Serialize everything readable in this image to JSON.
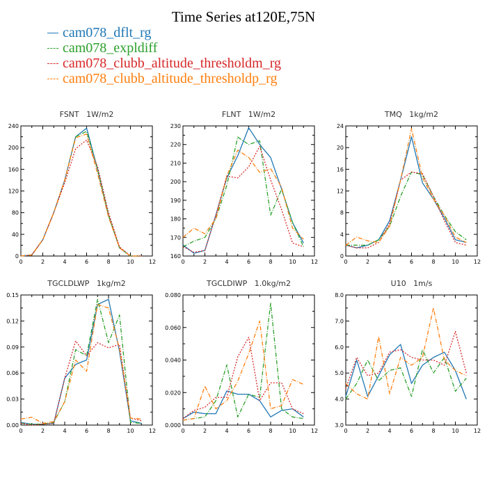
{
  "title": "Time Series at120E,75N",
  "legend": [
    {
      "label": "cam078_dflt_rg",
      "color": "#1f77b4",
      "dash": "solid"
    },
    {
      "label": "cam078_expldiff",
      "color": "#2ca02c",
      "dash": "dashdot"
    },
    {
      "label": "cam078_clubb_altitude_thresholdm_rg",
      "color": "#d62728",
      "dash": "dot"
    },
    {
      "label": "cam078_clubb_altitude_thresholdp_rg",
      "color": "#ff7f0e",
      "dash": "dashdot"
    }
  ],
  "chart_data": [
    {
      "type": "line",
      "title": "FSNT   1W/m2",
      "x": [
        0,
        1,
        2,
        3,
        4,
        5,
        6,
        7,
        8,
        9,
        10,
        11
      ],
      "xlim": [
        0,
        12
      ],
      "xticks": [
        "0",
        "2",
        "4",
        "6",
        "8",
        "10",
        "12"
      ],
      "ylim": [
        0,
        240
      ],
      "yticks": [
        "0",
        "40",
        "80",
        "120",
        "160",
        "200",
        "240"
      ],
      "series": [
        {
          "name": "cam078_dflt_rg",
          "values": [
            0,
            2,
            30,
            80,
            140,
            220,
            236,
            160,
            75,
            15,
            0,
            0
          ]
        },
        {
          "name": "cam078_expldiff",
          "values": [
            0,
            2,
            30,
            80,
            140,
            220,
            230,
            160,
            75,
            15,
            0,
            0
          ]
        },
        {
          "name": "cam078_clubb_altitude_thresholdm_rg",
          "values": [
            0,
            2,
            30,
            80,
            135,
            198,
            214,
            165,
            80,
            17,
            0,
            0
          ]
        },
        {
          "name": "cam078_clubb_altitude_thresholdp_rg",
          "values": [
            0,
            2,
            30,
            80,
            140,
            218,
            225,
            152,
            72,
            15,
            0,
            0
          ]
        }
      ]
    },
    {
      "type": "line",
      "title": "FLNT   1W/m2",
      "x": [
        0,
        1,
        2,
        3,
        4,
        5,
        6,
        7,
        8,
        9,
        10,
        11
      ],
      "xlim": [
        0,
        12
      ],
      "xticks": [
        "0",
        "2",
        "4",
        "6",
        "8",
        "10",
        "12"
      ],
      "ylim": [
        160,
        230
      ],
      "yticks": [
        "160",
        "170",
        "180",
        "190",
        "200",
        "210",
        "220",
        "230"
      ],
      "series": [
        {
          "name": "cam078_dflt_rg",
          "values": [
            166,
            161.5,
            163,
            182,
            202,
            214,
            229,
            220,
            213,
            196,
            178,
            167
          ]
        },
        {
          "name": "cam078_expldiff",
          "values": [
            165,
            168,
            170,
            180,
            198,
            224,
            220,
            222,
            182,
            196,
            178,
            165
          ]
        },
        {
          "name": "cam078_clubb_altitude_thresholdm_rg",
          "values": [
            165,
            162,
            163,
            182,
            203,
            202,
            208,
            219,
            201,
            185,
            167,
            165
          ]
        },
        {
          "name": "cam078_clubb_altitude_thresholdp_rg",
          "values": [
            170,
            175,
            172,
            180,
            203,
            217,
            213,
            205,
            207,
            197,
            175,
            169
          ]
        }
      ]
    },
    {
      "type": "line",
      "title": "TMQ   1kg/m2",
      "x": [
        0,
        1,
        2,
        3,
        4,
        5,
        6,
        7,
        8,
        9,
        10,
        11
      ],
      "xlim": [
        0,
        12
      ],
      "xticks": [
        "0",
        "2",
        "4",
        "6",
        "8",
        "10",
        "12"
      ],
      "ylim": [
        0,
        24
      ],
      "yticks": [
        "0",
        "4",
        "8",
        "12",
        "16",
        "20",
        "24"
      ],
      "series": [
        {
          "name": "cam078_dflt_rg",
          "values": [
            2,
            1.5,
            2,
            3,
            6.5,
            14,
            22,
            13.5,
            10.5,
            7,
            3,
            2.5
          ]
        },
        {
          "name": "cam078_expldiff",
          "values": [
            2,
            2,
            2,
            3,
            5.5,
            11,
            15.5,
            15,
            11,
            7.5,
            4.5,
            3
          ]
        },
        {
          "name": "cam078_clubb_altitude_thresholdm_rg",
          "values": [
            2,
            1.5,
            1.5,
            2.5,
            6,
            14,
            15.5,
            15.2,
            11,
            6.5,
            2.5,
            2
          ]
        },
        {
          "name": "cam078_clubb_altitude_thresholdp_rg",
          "values": [
            2,
            3.5,
            2.8,
            2.5,
            5.5,
            14,
            23.5,
            14.5,
            10.5,
            7.5,
            3.5,
            2.5
          ]
        }
      ]
    },
    {
      "type": "line",
      "title": "TGCLDLWP   1kg/m2",
      "x": [
        0,
        1,
        2,
        3,
        4,
        5,
        6,
        7,
        8,
        9,
        10,
        11
      ],
      "xlim": [
        0,
        12
      ],
      "xticks": [
        "0",
        "2",
        "4",
        "6",
        "8",
        "10",
        "12"
      ],
      "ylim": [
        0,
        0.15
      ],
      "yticks": [
        "0.00",
        "0.03",
        "0.06",
        "0.09",
        "0.12",
        "0.15"
      ],
      "series": [
        {
          "name": "cam078_dflt_rg",
          "values": [
            0.003,
            0.001,
            0.001,
            0.002,
            0.054,
            0.07,
            0.075,
            0.139,
            0.145,
            0.085,
            0.005,
            0.002
          ]
        },
        {
          "name": "cam078_expldiff",
          "values": [
            0.002,
            0.001,
            0.001,
            0.003,
            0.027,
            0.087,
            0.08,
            0.145,
            0.095,
            0.127,
            0.003,
            0.002
          ]
        },
        {
          "name": "cam078_clubb_altitude_thresholdm_rg",
          "values": [
            0.002,
            0,
            0.001,
            0.002,
            0.054,
            0.097,
            0.08,
            0.095,
            0.089,
            0.093,
            0.008,
            0.005
          ]
        },
        {
          "name": "cam078_clubb_altitude_thresholdp_rg",
          "values": [
            0.007,
            0.009,
            0.002,
            0.004,
            0.027,
            0.075,
            0.062,
            0.139,
            0.135,
            0.088,
            0.008,
            0.007
          ]
        }
      ]
    },
    {
      "type": "line",
      "title": "TGCLDIWP   1.0kg/m2",
      "x": [
        0,
        1,
        2,
        3,
        4,
        5,
        6,
        7,
        8,
        9,
        10,
        11
      ],
      "xlim": [
        0,
        12
      ],
      "xticks": [
        "0",
        "2",
        "4",
        "6",
        "8",
        "10",
        "12"
      ],
      "ylim": [
        0,
        0.08
      ],
      "yticks": [
        "0.000",
        "0.020",
        "0.040",
        "0.060",
        "0.080"
      ],
      "series": [
        {
          "name": "cam078_dflt_rg",
          "values": [
            0.004,
            0.008,
            0.007,
            0.007,
            0.021,
            0.019,
            0.019,
            0.015,
            0.005,
            0.009,
            0.01,
            0.005
          ]
        },
        {
          "name": "cam078_expldiff",
          "values": [
            0.003,
            0.004,
            0.005,
            0.015,
            0.037,
            0.005,
            0.019,
            0.017,
            0.075,
            0.01,
            0.005,
            0.004
          ]
        },
        {
          "name": "cam078_clubb_altitude_thresholdm_rg",
          "values": [
            0.004,
            0.009,
            0.011,
            0.017,
            0.017,
            0.042,
            0.054,
            0.015,
            0.026,
            0.026,
            0.01,
            0.007
          ]
        },
        {
          "name": "cam078_clubb_altitude_thresholdp_rg",
          "values": [
            0.003,
            0.004,
            0.024,
            0.01,
            0.015,
            0.027,
            0.044,
            0.064,
            0.01,
            0.012,
            0.028,
            0.025
          ]
        }
      ]
    },
    {
      "type": "line",
      "title": "U10   1m/s",
      "x": [
        0,
        1,
        2,
        3,
        4,
        5,
        6,
        7,
        8,
        9,
        10,
        11
      ],
      "xlim": [
        0,
        12
      ],
      "xticks": [
        "0",
        "2",
        "4",
        "6",
        "8",
        "10",
        "12"
      ],
      "ylim": [
        3,
        8
      ],
      "yticks": [
        "3.0",
        "4.0",
        "5.0",
        "6.0",
        "7.0",
        "8.0"
      ],
      "series": [
        {
          "name": "cam078_dflt_rg",
          "values": [
            4.1,
            5.5,
            4.1,
            4.9,
            5.7,
            6.1,
            4.6,
            5.3,
            5.6,
            5.8,
            5.1,
            4
          ]
        },
        {
          "name": "cam078_expldiff",
          "values": [
            4,
            4.6,
            5.5,
            4.7,
            5.1,
            5.2,
            4.1,
            5.9,
            5,
            5.6,
            4.3,
            4.8
          ]
        },
        {
          "name": "cam078_clubb_altitude_thresholdm_rg",
          "values": [
            4.4,
            5.6,
            4.9,
            5,
            5.8,
            5.9,
            5.6,
            5.5,
            5.5,
            5.3,
            6.6,
            5
          ]
        },
        {
          "name": "cam078_clubb_altitude_thresholdp_rg",
          "values": [
            4.6,
            4.2,
            4,
            6.4,
            4.2,
            5.6,
            5.3,
            5.6,
            7.5,
            5.5,
            5.1,
            4.9
          ]
        }
      ]
    }
  ]
}
